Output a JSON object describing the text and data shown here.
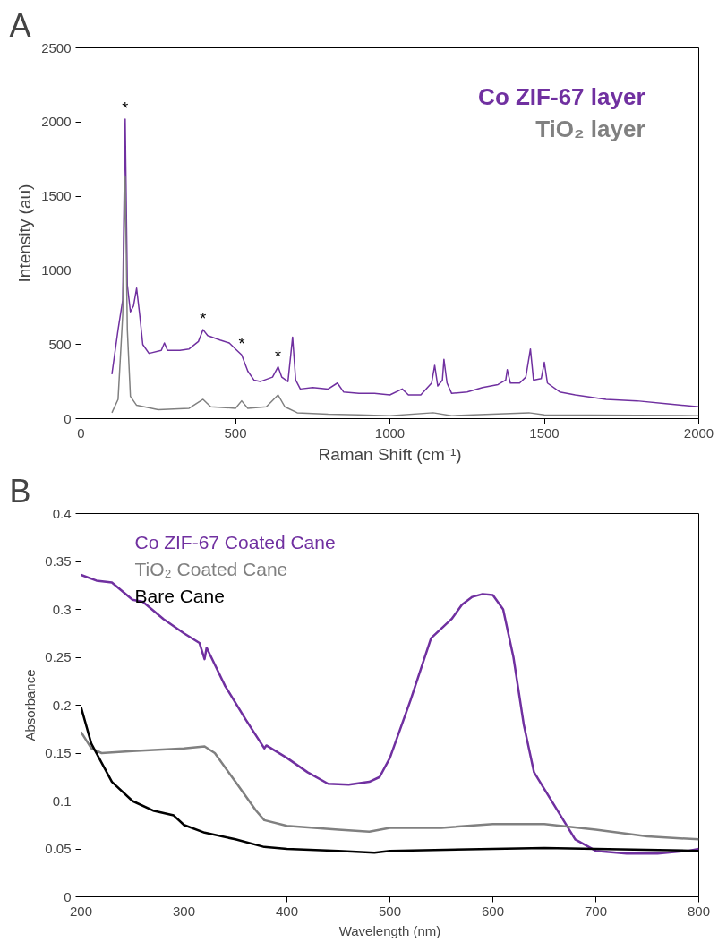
{
  "chart_data": [
    {
      "type": "line",
      "xlabel": "Raman Shift (cm⁻¹)",
      "ylabel": "Intensity (au)",
      "xlim": [
        0,
        2000
      ],
      "xticks": [
        0,
        500,
        1000,
        1500,
        2000
      ],
      "ylim": [
        0,
        2500
      ],
      "yticks": [
        0,
        500,
        1000,
        1500,
        2000,
        2500
      ],
      "grid": false,
      "legend": "top right",
      "annotations": [
        "A",
        {
          "text": "*",
          "x": 143,
          "y": 2020
        },
        {
          "text": "*",
          "x": 395,
          "y": 600
        },
        {
          "text": "*",
          "x": 520,
          "y": 430
        },
        {
          "text": "*",
          "x": 638,
          "y": 350
        }
      ],
      "series": [
        {
          "name": "Co ZIF-67 layer",
          "color": "#7030a0",
          "x": [
            100,
            120,
            135,
            143,
            150,
            160,
            170,
            180,
            190,
            200,
            220,
            260,
            270,
            280,
            320,
            350,
            380,
            395,
            410,
            450,
            480,
            500,
            520,
            540,
            560,
            580,
            620,
            638,
            650,
            670,
            685,
            695,
            710,
            750,
            800,
            830,
            850,
            900,
            950,
            1000,
            1040,
            1060,
            1100,
            1135,
            1145,
            1155,
            1170,
            1175,
            1185,
            1200,
            1250,
            1300,
            1350,
            1375,
            1380,
            1390,
            1420,
            1440,
            1455,
            1465,
            1490,
            1500,
            1510,
            1550,
            1600,
            1700,
            1800,
            1900,
            2000
          ],
          "values": [
            300,
            600,
            800,
            2020,
            900,
            720,
            760,
            880,
            700,
            500,
            440,
            460,
            510,
            460,
            460,
            470,
            520,
            600,
            560,
            530,
            510,
            470,
            430,
            320,
            260,
            250,
            280,
            350,
            280,
            250,
            550,
            260,
            200,
            210,
            200,
            240,
            180,
            170,
            170,
            160,
            200,
            160,
            160,
            240,
            360,
            220,
            260,
            400,
            240,
            170,
            180,
            210,
            230,
            260,
            330,
            240,
            240,
            280,
            470,
            260,
            270,
            380,
            240,
            180,
            160,
            130,
            120,
            100,
            80
          ]
        },
        {
          "name": "TiO₂ layer",
          "color": "#808080",
          "x": [
            100,
            120,
            135,
            143,
            150,
            160,
            180,
            250,
            350,
            395,
            420,
            500,
            520,
            540,
            600,
            638,
            660,
            700,
            800,
            900,
            1000,
            1140,
            1200,
            1450,
            1500,
            2000
          ],
          "values": [
            40,
            130,
            700,
            1630,
            600,
            150,
            90,
            60,
            70,
            130,
            80,
            70,
            120,
            70,
            80,
            160,
            80,
            40,
            30,
            25,
            20,
            40,
            20,
            40,
            25,
            20
          ]
        }
      ]
    },
    {
      "type": "line",
      "xlabel": "Wavelength (nm)",
      "ylabel": "Absorbance",
      "xlim": [
        200,
        800
      ],
      "xticks": [
        200,
        300,
        400,
        500,
        600,
        700,
        800
      ],
      "ylim": [
        0,
        0.4
      ],
      "yticks": [
        0,
        0.05,
        0.1,
        0.15,
        0.2,
        0.25,
        0.3,
        0.35,
        0.4
      ],
      "grid": false,
      "legend": "top left",
      "annotations": [
        "B"
      ],
      "series": [
        {
          "name": "Co ZIF-67 Coated Cane",
          "color": "#7030a0",
          "x": [
            200,
            215,
            230,
            250,
            260,
            280,
            300,
            315,
            320,
            322,
            340,
            360,
            378,
            380,
            400,
            420,
            440,
            460,
            480,
            490,
            500,
            520,
            540,
            550,
            560,
            570,
            580,
            590,
            600,
            610,
            620,
            630,
            640,
            660,
            680,
            700,
            730,
            760,
            790,
            800
          ],
          "values": [
            0.336,
            0.33,
            0.328,
            0.31,
            0.308,
            0.29,
            0.275,
            0.265,
            0.248,
            0.26,
            0.22,
            0.185,
            0.155,
            0.158,
            0.145,
            0.13,
            0.118,
            0.117,
            0.12,
            0.125,
            0.145,
            0.205,
            0.27,
            0.28,
            0.29,
            0.305,
            0.313,
            0.316,
            0.315,
            0.3,
            0.25,
            0.18,
            0.13,
            0.095,
            0.06,
            0.048,
            0.045,
            0.045,
            0.048,
            0.05
          ]
        },
        {
          "name": "TiO₂ Coated Cane",
          "color": "#808080",
          "x": [
            200,
            210,
            220,
            250,
            300,
            320,
            330,
            350,
            370,
            378,
            400,
            450,
            480,
            500,
            550,
            600,
            650,
            700,
            750,
            800
          ],
          "values": [
            0.172,
            0.155,
            0.15,
            0.152,
            0.155,
            0.157,
            0.15,
            0.12,
            0.09,
            0.08,
            0.074,
            0.07,
            0.068,
            0.072,
            0.072,
            0.076,
            0.076,
            0.07,
            0.063,
            0.06
          ]
        },
        {
          "name": "Bare Cane",
          "color": "#000000",
          "x": [
            200,
            210,
            230,
            250,
            270,
            290,
            300,
            320,
            350,
            378,
            400,
            450,
            485,
            500,
            600,
            650,
            700,
            800
          ],
          "values": [
            0.198,
            0.16,
            0.12,
            0.1,
            0.09,
            0.085,
            0.075,
            0.067,
            0.06,
            0.052,
            0.05,
            0.048,
            0.046,
            0.048,
            0.05,
            0.051,
            0.05,
            0.048
          ]
        }
      ]
    }
  ]
}
